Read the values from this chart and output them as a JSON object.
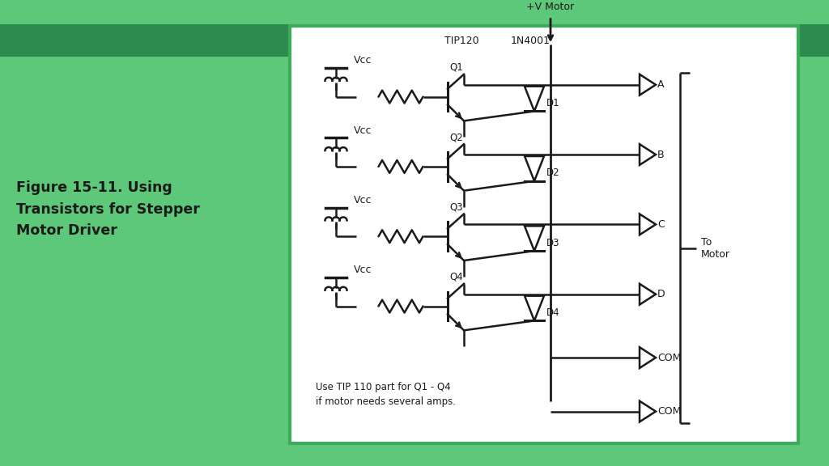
{
  "bg_color_top": "#5dc87a",
  "bg_color_main": "#5dc87a",
  "panel_bg": "#ffffff",
  "panel_border": "#3daa5e",
  "dark_green_band": "#2d8a4e",
  "text_color": "#1a1a1a",
  "line_color": "#1a1a1a",
  "title_text": "Figure 15-11. Using\nTransistors for Stepper\nMotor Driver",
  "title_fontsize": 12.5,
  "note_text": "Use TIP 110 part for Q1 - Q4\nif motor needs several amps.",
  "vcc_label": "Vcc",
  "tip_label": "TIP120",
  "diode_label": "1N4001",
  "vmotor_label": "+V Motor",
  "to_motor_label": "To\nMotor",
  "transistor_labels": [
    "Q1",
    "Q2",
    "Q3",
    "Q4"
  ],
  "diode_labels": [
    "D1",
    "D2",
    "D3",
    "D4"
  ],
  "output_labels": [
    "A",
    "B",
    "C",
    "D",
    "COM",
    "COM"
  ]
}
